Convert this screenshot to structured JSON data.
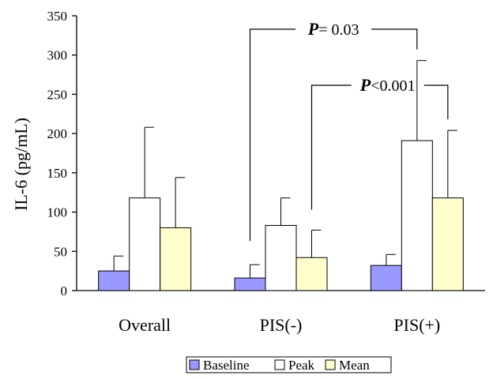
{
  "chart_data": {
    "type": "bar",
    "ylabel": "IL-6 (pg/mL)",
    "xlabel": "",
    "ylim": [
      0,
      350
    ],
    "yticks": [
      0,
      50,
      100,
      150,
      200,
      250,
      300,
      350
    ],
    "categories": [
      "Overall",
      "PIS(-)",
      "PIS(+)"
    ],
    "series": [
      {
        "name": "Baseline",
        "color": "#9999ff",
        "values": [
          25,
          16,
          32
        ],
        "errors": [
          19,
          17,
          14
        ]
      },
      {
        "name": "Peak",
        "color": "#ffffff",
        "values": [
          118,
          83,
          191
        ],
        "errors": [
          90,
          35,
          102
        ]
      },
      {
        "name": "Mean",
        "color": "#ffffcc",
        "values": [
          80,
          42,
          118
        ],
        "errors": [
          64,
          35,
          86
        ]
      }
    ],
    "legend_position": "bottom",
    "annotations": [
      {
        "p_label": "P",
        "text": "= 0.03",
        "from_category": 1,
        "from_series": 0,
        "to_category": 2,
        "to_series": 1
      },
      {
        "p_label": "P",
        "text": "<0.001",
        "from_category": 1,
        "from_series": 2,
        "to_category": 2,
        "to_series": 2
      }
    ]
  }
}
